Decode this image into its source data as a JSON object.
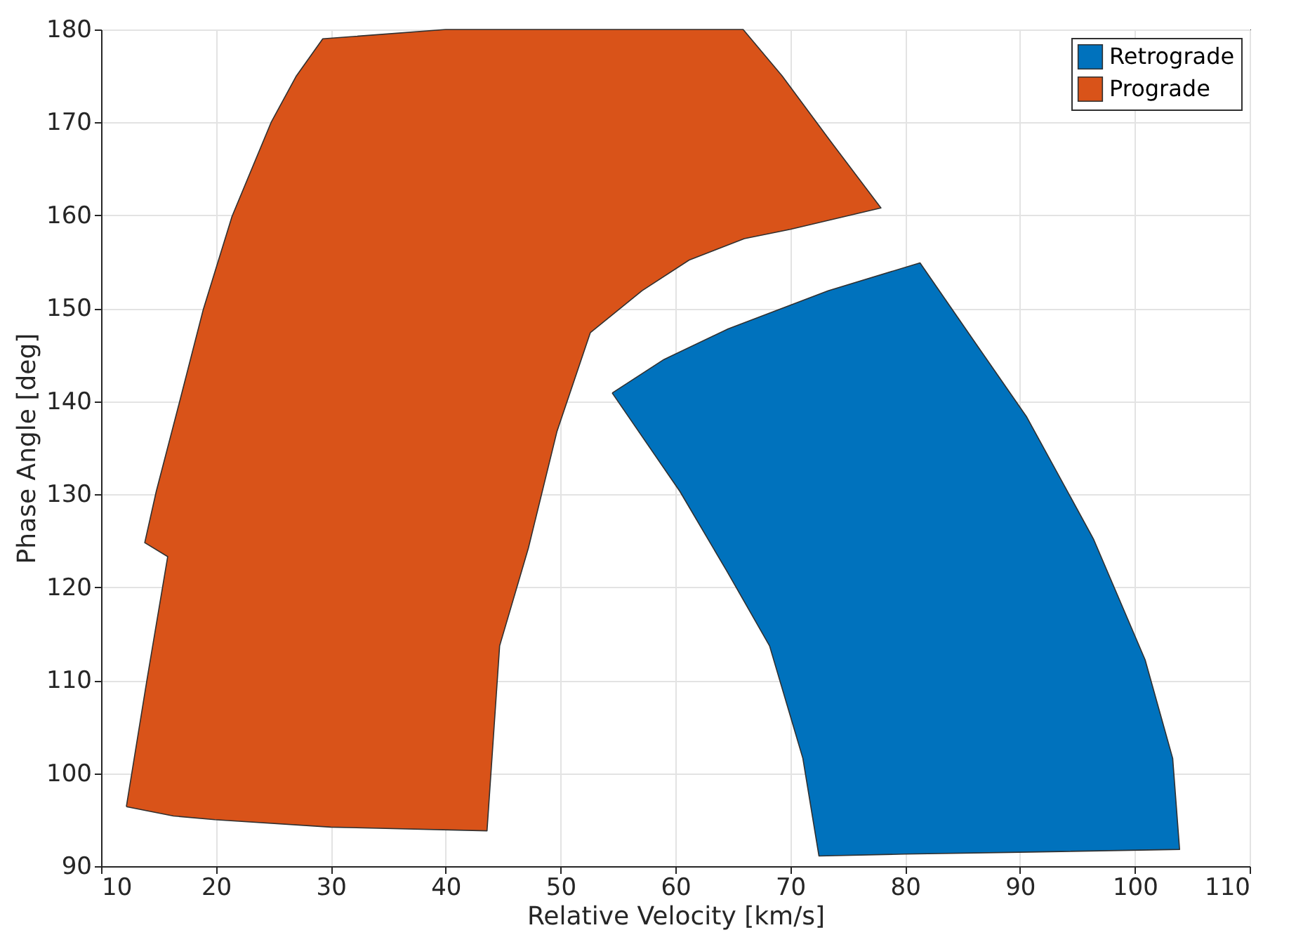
{
  "chart_data": {
    "type": "area",
    "xlabel": "Relative Velocity [km/s]",
    "ylabel": "Phase Angle [deg]",
    "xlim": [
      10,
      110
    ],
    "xticks": [
      10,
      20,
      30,
      40,
      50,
      60,
      70,
      80,
      90,
      100,
      110
    ],
    "ylim": [
      90,
      180
    ],
    "yticks": [
      90,
      100,
      110,
      120,
      130,
      140,
      150,
      160,
      170,
      180
    ],
    "grid": true,
    "legend": "top right",
    "series": [
      {
        "name": "Retrograde",
        "color": "#0072bd",
        "x": [
          54.5,
          59,
          64.6,
          73.3,
          81.3,
          86,
          90.6,
          96.4,
          100.9,
          103.3,
          103.9,
          90,
          80,
          72.5,
          71.1,
          68.2,
          64.5,
          60.4,
          54.5
        ],
        "values": [
          140.9,
          144.5,
          147.8,
          151.9,
          154.9,
          146.5,
          138.3,
          125.2,
          112.2,
          101.6,
          91.8,
          91.5,
          91.3,
          91.1,
          101.6,
          113.7,
          121.7,
          130.3,
          140.9
        ]
      },
      {
        "name": "Prograde",
        "color": "#d95319",
        "x": [
          12.2,
          14,
          15.8,
          13.8,
          14.8,
          16.8,
          18.9,
          21.4,
          24.8,
          27,
          29.3,
          40,
          50,
          60,
          65.9,
          69.3,
          73.5,
          77.9,
          70,
          66,
          61.2,
          57.1,
          52.6,
          49.7,
          47.2,
          44.7,
          43.6,
          30,
          19.9,
          16.3,
          12.2
        ],
        "values": [
          96.4,
          110.1,
          123.3,
          124.8,
          130.3,
          139.8,
          149.9,
          159.9,
          170,
          175,
          179,
          180,
          180,
          180,
          180,
          175,
          168,
          160.8,
          158.5,
          157.5,
          155.2,
          151.9,
          147.4,
          136.8,
          124.2,
          113.7,
          93.8,
          94.2,
          95,
          95.4,
          96.4
        ]
      }
    ]
  }
}
